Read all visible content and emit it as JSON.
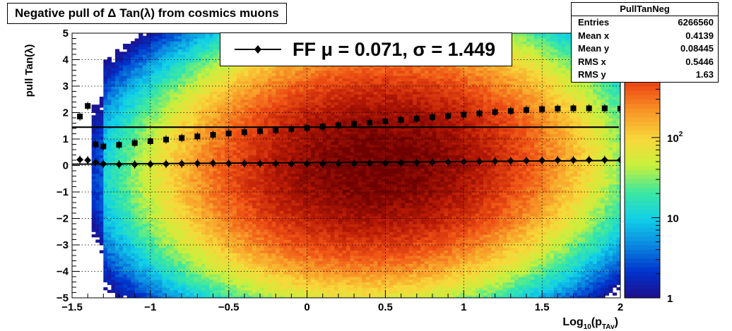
{
  "title": "Negative pull of Δ Tan(λ) from cosmics muons",
  "stats_box": {
    "name": "PullTanNeg",
    "rows": [
      {
        "label": "Entries",
        "value": "6266560"
      },
      {
        "label": "Mean x",
        "value": "0.4139"
      },
      {
        "label": "Mean y",
        "value": "0.08445"
      },
      {
        "label": "RMS x",
        "value": "0.5446"
      },
      {
        "label": "RMS y",
        "value": "1.63"
      }
    ]
  },
  "legend": {
    "text": "FF μ =  0.071, σ =   1.449",
    "marker": "filled-diamond-icon"
  },
  "chart_data": {
    "type": "heatmap",
    "title": "Negative pull of Δ Tan(λ) from cosmics muons",
    "xlabel": "Log10(pTAv)",
    "xlabel_main": "Log",
    "xlabel_sub1": "10",
    "xlabel_mid": "(p",
    "xlabel_sub2": "TAv",
    "xlabel_end": ")",
    "ylabel": "pull Tan(λ)",
    "xlim": [
      -1.5,
      2
    ],
    "ylim": [
      -5,
      5
    ],
    "zscale": "log",
    "zlim": [
      1,
      2000
    ],
    "x_ticks": [
      -1.5,
      -1,
      -0.5,
      0,
      0.5,
      1,
      1.5,
      2
    ],
    "x_tick_labels": [
      "−1.5",
      "−1",
      "−0.5",
      "0",
      "0.5",
      "1",
      "1.5",
      "2"
    ],
    "y_ticks": [
      -5,
      -4,
      -3,
      -2,
      -1,
      0,
      1,
      2,
      3,
      4,
      5
    ],
    "y_tick_labels": [
      "−5",
      "−4",
      "−3",
      "−2",
      "−1",
      "0",
      "1",
      "2",
      "3",
      "4",
      "5"
    ],
    "z_ticks": [
      1,
      10,
      100
    ],
    "z_tick_labels": [
      "1",
      "10",
      "10^2"
    ],
    "grid": true,
    "colormap": [
      "#1e0f8c",
      "#0033cc",
      "#0a88e0",
      "#11d0e8",
      "#3ce8a0",
      "#c8f03c",
      "#f8d83a",
      "#f89a28",
      "#ee4e14",
      "#b81a05",
      "#6e0000"
    ],
    "density": {
      "center_x": 0.45,
      "sigma_x": 0.54,
      "center_y": 0.08,
      "sigma_y": 1.45,
      "peak": 2000
    },
    "series": [
      {
        "name": "mean",
        "marker": "diamond",
        "x": [
          -1.45,
          -1.4,
          -1.35,
          -1.3,
          -1.2,
          -1.1,
          -1.0,
          -0.9,
          -0.8,
          -0.7,
          -0.6,
          -0.5,
          -0.4,
          -0.3,
          -0.2,
          -0.1,
          0.0,
          0.1,
          0.2,
          0.3,
          0.4,
          0.5,
          0.6,
          0.7,
          0.8,
          0.9,
          1.0,
          1.1,
          1.2,
          1.3,
          1.4,
          1.5,
          1.6,
          1.7,
          1.8,
          1.9,
          2.0
        ],
        "y": [
          0.22,
          0.2,
          0.12,
          0.06,
          0.04,
          0.04,
          0.05,
          0.06,
          0.07,
          0.08,
          0.09,
          0.08,
          0.08,
          0.07,
          0.07,
          0.06,
          0.07,
          0.07,
          0.08,
          0.08,
          0.09,
          0.09,
          0.1,
          0.11,
          0.12,
          0.13,
          0.14,
          0.15,
          0.16,
          0.17,
          0.18,
          0.19,
          0.2,
          0.2,
          0.21,
          0.21,
          0.21
        ]
      },
      {
        "name": "sigma",
        "marker": "square",
        "x": [
          -1.45,
          -1.4,
          -1.35,
          -1.3,
          -1.2,
          -1.1,
          -1.0,
          -0.9,
          -0.8,
          -0.7,
          -0.6,
          -0.5,
          -0.4,
          -0.3,
          -0.2,
          -0.1,
          0.0,
          0.1,
          0.2,
          0.3,
          0.4,
          0.5,
          0.6,
          0.7,
          0.8,
          0.9,
          1.0,
          1.1,
          1.2,
          1.3,
          1.4,
          1.5,
          1.6,
          1.7,
          1.8,
          1.9,
          2.0
        ],
        "y": [
          1.85,
          2.25,
          0.8,
          0.72,
          0.78,
          0.85,
          0.92,
          0.98,
          1.04,
          1.1,
          1.16,
          1.21,
          1.26,
          1.3,
          1.34,
          1.38,
          1.42,
          1.47,
          1.52,
          1.57,
          1.62,
          1.67,
          1.72,
          1.77,
          1.82,
          1.87,
          1.92,
          1.97,
          2.02,
          2.06,
          2.1,
          2.13,
          2.15,
          2.16,
          2.16,
          2.16,
          2.15
        ]
      },
      {
        "name": "fit-sigma",
        "type": "hline",
        "y": 1.449
      }
    ]
  }
}
